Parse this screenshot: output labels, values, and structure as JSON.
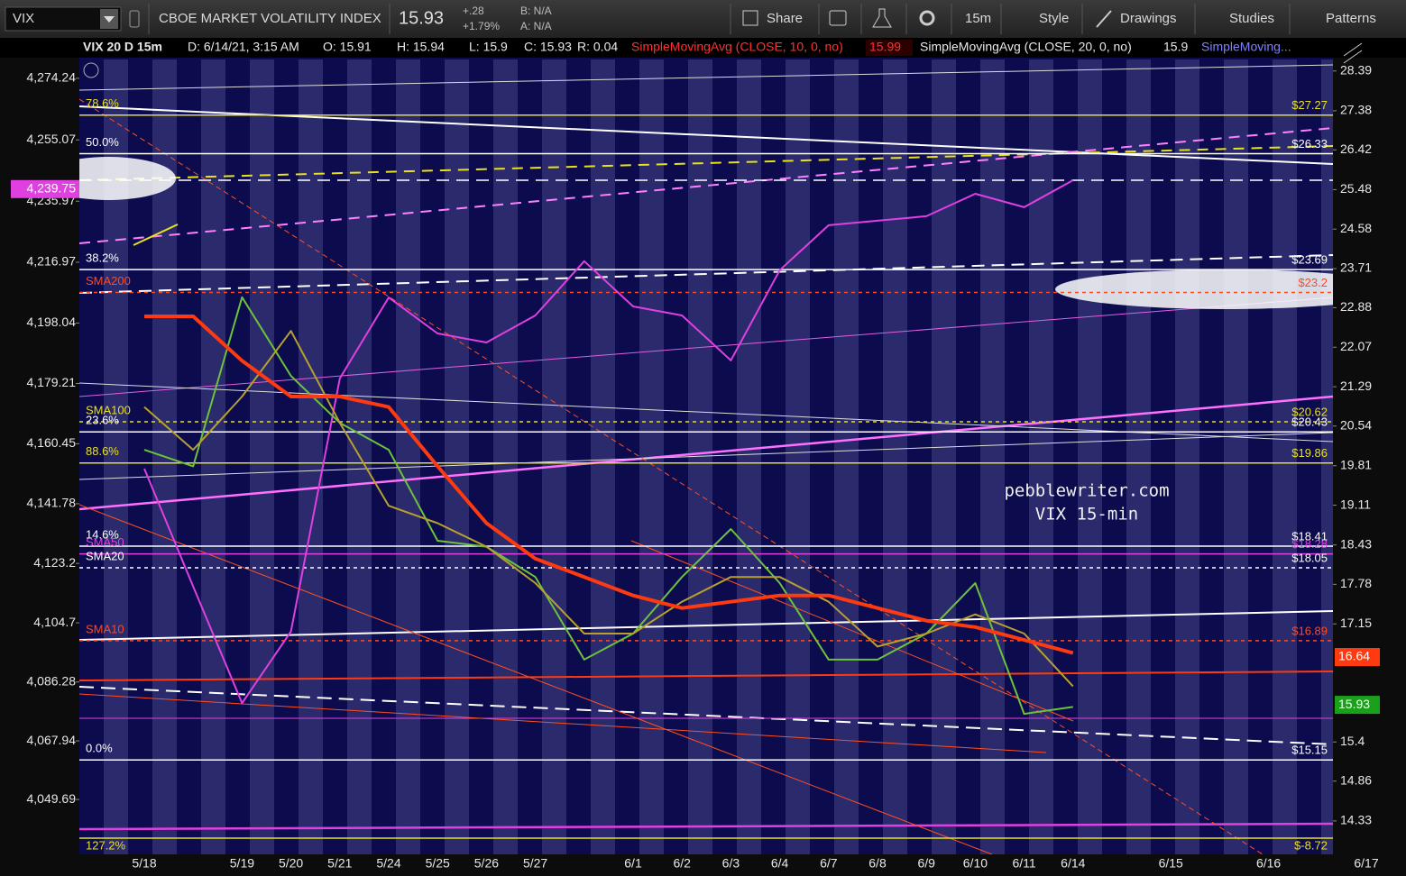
{
  "toolbar": {
    "symbol": "VIX",
    "title": "CBOE MARKET VOLATILITY INDEX",
    "price": "15.93",
    "change": "+.28",
    "change_pct": "+1.79%",
    "bid": "B: N/A",
    "ask": "A: N/A",
    "buttons": [
      "Share",
      "15m",
      "Style",
      "Drawings",
      "Studies",
      "Patterns"
    ]
  },
  "info_bar": {
    "symbol": "VIX 20 D 15m",
    "date": "D: 6/14/21, 3:15 AM",
    "open": "O: 15.91",
    "high": "H: 15.94",
    "low": "L: 15.9",
    "close": "C: 15.93",
    "range": "R: 0.04",
    "study_1": "SimpleMovingAvg (CLOSE, 10, 0, no)",
    "study_1_value": "15.99",
    "study_2": "SimpleMovingAvg (CLOSE, 20, 0, no)",
    "study_2_value": "15.9",
    "study_3": "SimpleMoving..."
  },
  "chart_data": {
    "type": "line",
    "annotations": [
      "pebblewriter.com",
      "VIX 15-min"
    ],
    "categories": [
      "5/18",
      null,
      "5/19",
      "5/20",
      "5/21",
      "5/24",
      "5/25",
      "5/26",
      "5/27",
      null,
      "6/1",
      "6/2",
      "6/3",
      "6/4",
      "6/7",
      "6/8",
      "6/9",
      "6/10",
      "6/11",
      "6/14",
      null,
      "6/15",
      null,
      "6/16",
      null,
      "6/17"
    ],
    "ylim": [
      4032.6,
      4280.1
    ],
    "yticks": [
      {
        "value": 4274.24,
        "label": "4,274.24"
      },
      {
        "value": 4255.07,
        "label": "4,255.07"
      },
      {
        "value": 4235.97,
        "label": "4,235.97"
      },
      {
        "value": 4216.97,
        "label": "4,216.97"
      },
      {
        "value": 4198.04,
        "label": "4,198.04"
      },
      {
        "value": 4179.21,
        "label": "4,179.21"
      },
      {
        "value": 4160.45,
        "label": "4,160.45"
      },
      {
        "value": 4141.78,
        "label": "4,141.78"
      },
      {
        "value": 4123.2,
        "label": "4,123.2"
      },
      {
        "value": 4104.7,
        "label": "4,104.7"
      },
      {
        "value": 4086.28,
        "label": "4,086.28"
      },
      {
        "value": 4067.94,
        "label": "4,067.94"
      },
      {
        "value": 4049.69,
        "label": "4,049.69"
      }
    ],
    "y2lim": [
      13.9,
      28.69
    ],
    "y2log": true,
    "y2ticks": [
      28.39,
      27.38,
      26.42,
      25.48,
      24.58,
      23.71,
      22.88,
      22.07,
      21.29,
      20.54,
      19.81,
      19.11,
      18.43,
      17.78,
      17.15,
      15.4,
      14.86,
      14.33
    ],
    "series": [
      {
        "color": "#e040e0",
        "values": [
          4152.7,
          4116.0,
          4079.7,
          4102.0,
          4180.8,
          4206.0,
          4194.8,
          4192.0,
          4200.4,
          4217.3,
          4203.2,
          4200.4,
          4186.4,
          4214.5,
          4228.5,
          4229.9,
          4231.3,
          4238.3,
          4234.1,
          4242.5,
          null,
          null,
          null,
          null,
          null,
          null
        ]
      },
      {
        "name": "VIX",
        "axis": "y2",
        "color": "#6cc23c",
        "values": [
          20.1,
          19.8,
          23.1,
          21.5,
          20.6,
          20.1,
          18.5,
          18.4,
          17.9,
          16.6,
          17.0,
          17.9,
          18.7,
          17.8,
          16.6,
          16.6,
          17.0,
          17.8,
          15.8,
          15.9,
          null,
          null,
          null,
          null,
          null,
          null
        ]
      },
      {
        "name": "SMA20",
        "axis": "y2",
        "color": "#b8a030",
        "values": [
          20.9,
          20.1,
          21.1,
          22.4,
          20.6,
          19.1,
          18.8,
          18.4,
          17.8,
          17.0,
          17.0,
          17.5,
          17.9,
          17.9,
          17.5,
          16.8,
          17.0,
          17.3,
          17.0,
          16.2,
          null,
          null,
          null,
          null,
          null,
          null
        ]
      },
      {
        "name": "SMA200",
        "axis": "y2",
        "color": "#ff3a10",
        "values": [
          22.7,
          22.7,
          21.8,
          21.1,
          21.1,
          20.9,
          19.8,
          18.8,
          18.2,
          17.9,
          17.6,
          17.4,
          17.5,
          17.6,
          17.6,
          17.4,
          17.2,
          17.1,
          16.9,
          16.7,
          null,
          null,
          null,
          null,
          null,
          null
        ]
      }
    ],
    "levels": [
      {
        "name": "78.6%",
        "price": {
          "value": 27.27,
          "label": "$27.27"
        },
        "color": "#e8e020",
        "dashed": false
      },
      {
        "name": "50.0%",
        "price": {
          "value": 26.33,
          "label": "$26.33"
        },
        "color": "#ffffff",
        "dashed": false
      },
      {
        "name": "38.2%",
        "price": {
          "value": 23.69,
          "label": "$23.69"
        },
        "color": "#ffffff",
        "dashed": false
      },
      {
        "name": "SMA200",
        "price": {
          "value": 23.2,
          "label": "$23.2"
        },
        "color": "#ff4a20",
        "dashed": true
      },
      {
        "name": "SMA100",
        "price": {
          "value": 20.62,
          "label": "$20.62"
        },
        "color": "#e8e020",
        "dashed": true
      },
      {
        "name": "23.6%",
        "price": {
          "value": 20.43,
          "label": "$20.43"
        },
        "color": "#ffffff",
        "dashed": false
      },
      {
        "name": "88.6%",
        "price": {
          "value": 19.86,
          "label": "$19.86"
        },
        "color": "#e8e020",
        "dashed": false
      },
      {
        "name": "14.6%",
        "price": {
          "value": 18.41,
          "label": "$18.41"
        },
        "color": "#ffffff",
        "dashed": false
      },
      {
        "name": "SMA50",
        "price": {
          "value": 18.28,
          "label": "$18.28"
        },
        "color": "#e040e0",
        "dashed": false
      },
      {
        "name": "SMA20",
        "price": {
          "value": 18.05,
          "label": "$18.05"
        },
        "color": "#ffffff",
        "dashed": true
      },
      {
        "name": "SMA10",
        "price": {
          "value": 16.89,
          "label": "$16.89"
        },
        "color": "#ff4a20",
        "dashed": true
      },
      {
        "name": "0.0%",
        "price": {
          "value": 15.15,
          "label": "$15.15"
        },
        "color": "#ffffff",
        "dashed": false
      }
    ],
    "bottom_level": {
      "name": "127.2%",
      "price_label": "$-8.72",
      "color": "#e8e020"
    },
    "current_labels": [
      {
        "axis": "y",
        "value": 4239.75,
        "label": "4,239.75",
        "color": "#e040e0"
      },
      {
        "axis": "y2",
        "value": 16.64,
        "color": "#ff3a10"
      },
      {
        "axis": "y2",
        "value": 15.93,
        "color": "#1aa01a"
      }
    ]
  }
}
